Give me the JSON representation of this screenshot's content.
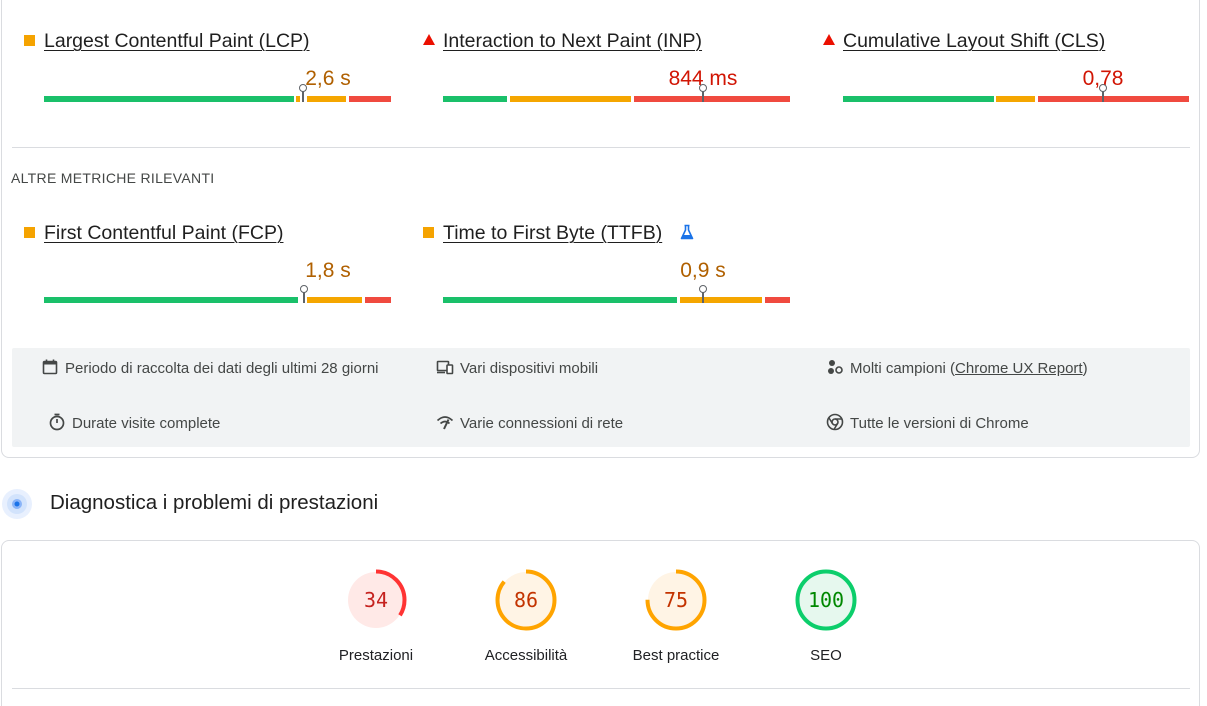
{
  "core_metrics": [
    {
      "name": "Largest Contentful Paint (LCP)",
      "value": "2,6 s",
      "status": "average",
      "marker": "square"
    },
    {
      "name": "Interaction to Next Paint (INP)",
      "value": "844 ms",
      "status": "poor",
      "marker": "triangle"
    },
    {
      "name": "Cumulative Layout Shift (CLS)",
      "value": "0,78",
      "status": "poor",
      "marker": "triangle"
    }
  ],
  "other_metrics_label": "ALTRE METRICHE RILEVANTI",
  "other_metrics": [
    {
      "name": "First Contentful Paint (FCP)",
      "value": "1,8 s",
      "status": "average",
      "marker": "square"
    },
    {
      "name": "Time to First Byte (TTFB)",
      "value": "0,9 s",
      "status": "average",
      "marker": "square",
      "icon": "flask-icon"
    }
  ],
  "info": {
    "period": "Periodo di raccolta dei dati degli ultimi 28 giorni",
    "devices": "Vari dispositivi mobili",
    "samples_prefix": "Molti campioni (",
    "samples_link": "Chrome UX Report",
    "samples_suffix": ")",
    "visits": "Durate visite complete",
    "connections": "Varie connessioni di rete",
    "chrome": "Tutte le versioni di Chrome"
  },
  "diagnostics": {
    "title": "Diagnostica i problemi di prestazioni"
  },
  "scores": [
    {
      "label": "Prestazioni",
      "score": "34",
      "color": "#ff3333"
    },
    {
      "label": "Accessibilità",
      "score": "86",
      "color": "#ffa400"
    },
    {
      "label": "Best practice",
      "score": "75",
      "color": "#ffa400"
    },
    {
      "label": "SEO",
      "score": "100",
      "color": "#0cce6b"
    }
  ],
  "colors": {
    "good": "#1ac06a",
    "average": "#f5a600",
    "poor": "#f04a3f",
    "average_text": "#b06000",
    "poor_text": "#d11504"
  }
}
